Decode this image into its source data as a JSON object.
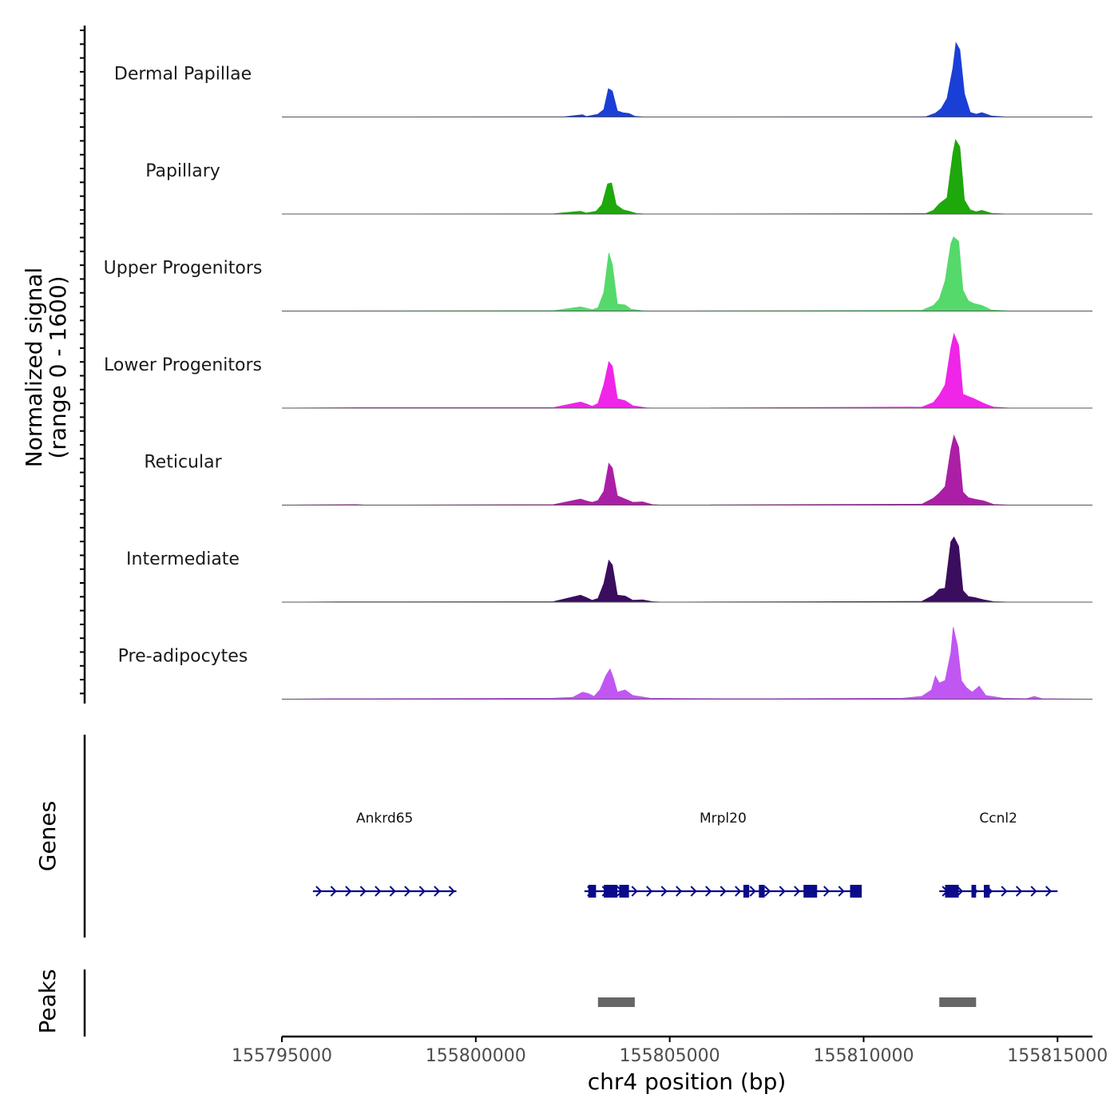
{
  "chart_data": {
    "type": "area",
    "title": "",
    "xlabel": "chr4 position (bp)",
    "ylabel": "Normalized signal",
    "ylabel_range": "(range 0 - 1600)",
    "ylim": [
      0,
      1600
    ],
    "xlim": [
      155795000,
      155815900
    ],
    "x_ticks": [
      155795000,
      155800000,
      155805000,
      155810000,
      155815000
    ],
    "x_tick_labels": [
      "155795000",
      "155800000",
      "155805000",
      "155810000",
      "155815000"
    ],
    "series": [
      {
        "name": "Dermal Papillae",
        "color": "#1a3fd6",
        "points": [
          [
            155795000,
            0
          ],
          [
            155802300,
            5
          ],
          [
            155802750,
            50
          ],
          [
            155802850,
            10
          ],
          [
            155803150,
            60
          ],
          [
            155803300,
            160
          ],
          [
            155803420,
            610
          ],
          [
            155803520,
            560
          ],
          [
            155803650,
            130
          ],
          [
            155803800,
            90
          ],
          [
            155803950,
            75
          ],
          [
            155804100,
            15
          ],
          [
            155804350,
            0
          ],
          [
            155811600,
            5
          ],
          [
            155811850,
            80
          ],
          [
            155812000,
            180
          ],
          [
            155812150,
            400
          ],
          [
            155812300,
            1050
          ],
          [
            155812380,
            1600
          ],
          [
            155812480,
            1450
          ],
          [
            155812600,
            500
          ],
          [
            155812750,
            100
          ],
          [
            155812900,
            60
          ],
          [
            155813050,
            95
          ],
          [
            155813300,
            20
          ],
          [
            155813700,
            0
          ],
          [
            155815900,
            0
          ]
        ]
      },
      {
        "name": "Papillary",
        "color": "#1ea80b",
        "points": [
          [
            155795000,
            0
          ],
          [
            155802000,
            5
          ],
          [
            155802700,
            60
          ],
          [
            155802850,
            20
          ],
          [
            155803100,
            60
          ],
          [
            155803250,
            200
          ],
          [
            155803400,
            650
          ],
          [
            155803500,
            670
          ],
          [
            155803620,
            200
          ],
          [
            155803800,
            90
          ],
          [
            155803950,
            60
          ],
          [
            155804150,
            10
          ],
          [
            155804400,
            0
          ],
          [
            155811600,
            10
          ],
          [
            155811800,
            80
          ],
          [
            155811950,
            220
          ],
          [
            155812150,
            350
          ],
          [
            155812300,
            1300
          ],
          [
            155812370,
            1600
          ],
          [
            155812480,
            1450
          ],
          [
            155812600,
            300
          ],
          [
            155812750,
            90
          ],
          [
            155812900,
            50
          ],
          [
            155813050,
            80
          ],
          [
            155813300,
            15
          ],
          [
            155813700,
            0
          ],
          [
            155815900,
            0
          ]
        ]
      },
      {
        "name": "Upper Progenitors",
        "color": "#55d96b",
        "points": [
          [
            155795000,
            0
          ],
          [
            155802000,
            8
          ],
          [
            155802700,
            90
          ],
          [
            155802850,
            60
          ],
          [
            155803000,
            30
          ],
          [
            155803150,
            70
          ],
          [
            155803300,
            400
          ],
          [
            155803430,
            1250
          ],
          [
            155803520,
            1000
          ],
          [
            155803650,
            150
          ],
          [
            155803850,
            130
          ],
          [
            155804000,
            40
          ],
          [
            155804300,
            5
          ],
          [
            155804600,
            0
          ],
          [
            155811500,
            15
          ],
          [
            155811800,
            120
          ],
          [
            155811950,
            260
          ],
          [
            155812100,
            650
          ],
          [
            155812250,
            1450
          ],
          [
            155812320,
            1600
          ],
          [
            155812450,
            1500
          ],
          [
            155812560,
            450
          ],
          [
            155812700,
            220
          ],
          [
            155812850,
            160
          ],
          [
            155813050,
            120
          ],
          [
            155813300,
            20
          ],
          [
            155813800,
            0
          ],
          [
            155815900,
            0
          ]
        ]
      },
      {
        "name": "Lower Progenitors",
        "color": "#ef25e8",
        "points": [
          [
            155795000,
            0
          ],
          [
            155797000,
            10
          ],
          [
            155802000,
            10
          ],
          [
            155802700,
            130
          ],
          [
            155802850,
            90
          ],
          [
            155803000,
            40
          ],
          [
            155803150,
            100
          ],
          [
            155803300,
            500
          ],
          [
            155803430,
            1000
          ],
          [
            155803520,
            900
          ],
          [
            155803650,
            200
          ],
          [
            155803850,
            160
          ],
          [
            155804050,
            50
          ],
          [
            155804400,
            5
          ],
          [
            155804600,
            0
          ],
          [
            155811500,
            20
          ],
          [
            155811800,
            120
          ],
          [
            155811950,
            280
          ],
          [
            155812100,
            500
          ],
          [
            155812250,
            1300
          ],
          [
            155812330,
            1600
          ],
          [
            155812450,
            1350
          ],
          [
            155812560,
            300
          ],
          [
            155812700,
            250
          ],
          [
            155812850,
            200
          ],
          [
            155813100,
            100
          ],
          [
            155813350,
            20
          ],
          [
            155813800,
            0
          ],
          [
            155815900,
            0
          ]
        ]
      },
      {
        "name": "Reticular",
        "color": "#ab1fa6",
        "points": [
          [
            155795000,
            0
          ],
          [
            155796900,
            10
          ],
          [
            155797200,
            0
          ],
          [
            155802000,
            10
          ],
          [
            155802700,
            130
          ],
          [
            155802850,
            90
          ],
          [
            155803000,
            60
          ],
          [
            155803150,
            100
          ],
          [
            155803300,
            300
          ],
          [
            155803430,
            900
          ],
          [
            155803520,
            800
          ],
          [
            155803650,
            200
          ],
          [
            155803850,
            130
          ],
          [
            155804050,
            60
          ],
          [
            155804300,
            70
          ],
          [
            155804550,
            10
          ],
          [
            155804800,
            0
          ],
          [
            155811500,
            20
          ],
          [
            155811800,
            150
          ],
          [
            155811950,
            260
          ],
          [
            155812100,
            400
          ],
          [
            155812250,
            1200
          ],
          [
            155812330,
            1500
          ],
          [
            155812450,
            1250
          ],
          [
            155812560,
            280
          ],
          [
            155812700,
            160
          ],
          [
            155812850,
            130
          ],
          [
            155813100,
            90
          ],
          [
            155813350,
            15
          ],
          [
            155813800,
            0
          ],
          [
            155815900,
            0
          ]
        ]
      },
      {
        "name": "Intermediate",
        "color": "#3a0d5f",
        "points": [
          [
            155795000,
            0
          ],
          [
            155796500,
            5
          ],
          [
            155802000,
            10
          ],
          [
            155802700,
            150
          ],
          [
            155802850,
            100
          ],
          [
            155803000,
            40
          ],
          [
            155803150,
            80
          ],
          [
            155803300,
            400
          ],
          [
            155803430,
            900
          ],
          [
            155803520,
            800
          ],
          [
            155803650,
            150
          ],
          [
            155803850,
            130
          ],
          [
            155804050,
            40
          ],
          [
            155804300,
            50
          ],
          [
            155804550,
            10
          ],
          [
            155804800,
            0
          ],
          [
            155811500,
            15
          ],
          [
            155811800,
            150
          ],
          [
            155811950,
            280
          ],
          [
            155812100,
            300
          ],
          [
            155812250,
            1300
          ],
          [
            155812330,
            1400
          ],
          [
            155812450,
            1200
          ],
          [
            155812560,
            250
          ],
          [
            155812700,
            120
          ],
          [
            155812850,
            100
          ],
          [
            155813100,
            50
          ],
          [
            155813350,
            10
          ],
          [
            155813800,
            0
          ],
          [
            155815900,
            0
          ]
        ]
      },
      {
        "name": "Pre-adipocytes",
        "color": "#c057f2",
        "points": [
          [
            155795000,
            0
          ],
          [
            155796300,
            10
          ],
          [
            155797000,
            10
          ],
          [
            155802000,
            20
          ],
          [
            155802500,
            40
          ],
          [
            155802750,
            150
          ],
          [
            155802900,
            120
          ],
          [
            155803050,
            60
          ],
          [
            155803200,
            200
          ],
          [
            155803350,
            500
          ],
          [
            155803460,
            650
          ],
          [
            155803550,
            450
          ],
          [
            155803650,
            150
          ],
          [
            155803850,
            200
          ],
          [
            155804050,
            80
          ],
          [
            155804500,
            20
          ],
          [
            155805500,
            15
          ],
          [
            155806500,
            10
          ],
          [
            155807500,
            10
          ],
          [
            155811000,
            20
          ],
          [
            155811500,
            60
          ],
          [
            155811750,
            200
          ],
          [
            155811850,
            500
          ],
          [
            155811950,
            350
          ],
          [
            155812100,
            400
          ],
          [
            155812250,
            1000
          ],
          [
            155812310,
            1550
          ],
          [
            155812420,
            1150
          ],
          [
            155812520,
            400
          ],
          [
            155812650,
            250
          ],
          [
            155812800,
            150
          ],
          [
            155812980,
            280
          ],
          [
            155813150,
            80
          ],
          [
            155813600,
            20
          ],
          [
            155814200,
            10
          ],
          [
            155814400,
            60
          ],
          [
            155814600,
            10
          ],
          [
            155815900,
            0
          ]
        ]
      }
    ],
    "genes_label": "Genes",
    "genes": [
      {
        "name": "Ankrd65",
        "strand": "+",
        "start": 155795800,
        "end": 155799500,
        "exons": []
      },
      {
        "name": "Mrpl20",
        "strand": "+",
        "start": 155802800,
        "end": 155809950,
        "exons": [
          [
            155802900,
            155803100
          ],
          [
            155803300,
            155803650
          ],
          [
            155803700,
            155803950
          ],
          [
            155806900,
            155807050
          ],
          [
            155807300,
            155807450
          ],
          [
            155808450,
            155808800
          ],
          [
            155809650,
            155809950
          ]
        ]
      },
      {
        "name": "Ccnl2",
        "strand": "+",
        "start": 155811950,
        "end": 155815000,
        "exons": [
          [
            155812100,
            155812450
          ],
          [
            155812780,
            155812900
          ],
          [
            155813100,
            155813250
          ]
        ]
      }
    ],
    "peaks_label": "Peaks",
    "peaks": [
      [
        155803150,
        155804100
      ],
      [
        155811950,
        155812900
      ]
    ]
  }
}
